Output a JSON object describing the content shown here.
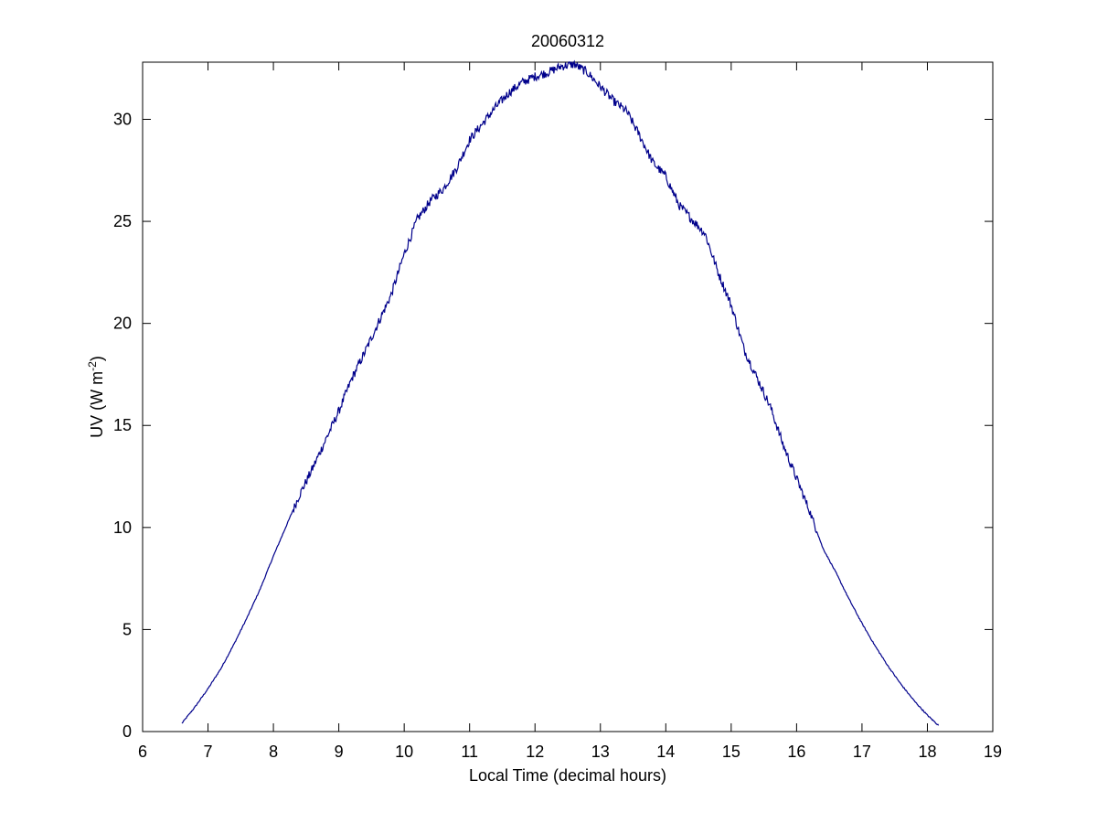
{
  "chart_data": {
    "type": "line",
    "title": "20060312",
    "xlabel": "Local Time (decimal hours)",
    "ylabel_main": "UV (W m",
    "ylabel_sup": "-2",
    "ylabel_close": ")",
    "xlim": [
      6,
      19
    ],
    "ylim": [
      0,
      32.8
    ],
    "xticks": [
      6,
      7,
      8,
      9,
      10,
      11,
      12,
      13,
      14,
      15,
      16,
      17,
      18,
      19
    ],
    "yticks": [
      0,
      5,
      10,
      15,
      20,
      25,
      30
    ],
    "grid": false,
    "line_color": "#00008b",
    "series": [
      {
        "x": [
          6.6,
          6.8,
          7.0,
          7.2,
          7.4,
          7.6,
          7.8,
          8.0,
          8.2,
          8.4,
          8.6,
          8.8,
          9.0,
          9.2,
          9.4,
          9.6,
          9.8,
          10.0,
          10.2,
          10.4,
          10.6,
          10.8,
          11.0,
          11.2,
          11.4,
          11.6,
          11.8,
          12.0,
          12.2,
          12.4,
          12.6,
          12.8,
          13.0,
          13.2,
          13.4,
          13.6,
          13.8,
          14.0,
          14.2,
          14.4,
          14.6,
          14.8,
          15.0,
          15.2,
          15.4,
          15.6,
          15.8,
          16.0,
          16.2,
          16.4,
          16.6,
          16.8,
          17.0,
          17.2,
          17.4,
          17.6,
          17.8,
          18.0,
          18.17
        ],
        "y": [
          0.4,
          1.2,
          2.1,
          3.1,
          4.3,
          5.6,
          7.0,
          8.6,
          10.1,
          11.6,
          12.9,
          14.3,
          15.7,
          17.3,
          18.6,
          20.0,
          21.4,
          23.4,
          25.1,
          26.0,
          26.6,
          27.6,
          29.0,
          29.8,
          30.6,
          31.3,
          31.8,
          32.1,
          32.3,
          32.6,
          32.7,
          32.3,
          31.6,
          30.9,
          30.4,
          29.2,
          27.9,
          27.2,
          25.8,
          25.1,
          24.4,
          22.5,
          20.9,
          18.7,
          17.3,
          15.9,
          14.0,
          12.4,
          10.8,
          9.0,
          7.8,
          6.5,
          5.3,
          4.2,
          3.2,
          2.3,
          1.5,
          0.8,
          0.3
        ]
      }
    ]
  }
}
